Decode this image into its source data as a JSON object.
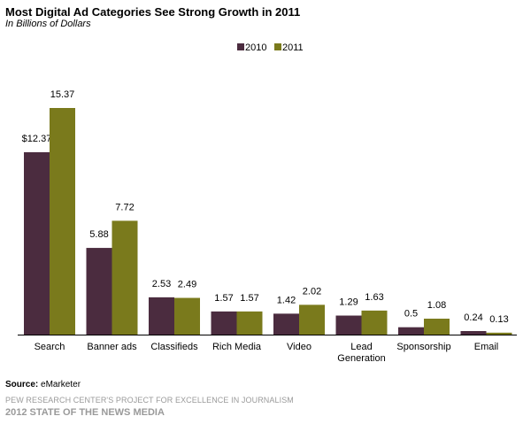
{
  "header": {
    "title": "Most Digital Ad Categories See Strong Growth in 2011",
    "subtitle": "In Billions of Dollars"
  },
  "footer": {
    "source_label": "Source:",
    "source_value": "eMarketer",
    "org_line": "PEW RESEARCH CENTER'S PROJECT FOR EXCELLENCE IN JOURNALISM",
    "report_line": "2012 STATE OF THE NEWS MEDIA"
  },
  "chart_data": {
    "type": "bar",
    "title": "Most Digital Ad Categories See Strong Growth in 2011",
    "subtitle": "In Billions of Dollars",
    "categories": [
      [
        "Search"
      ],
      [
        "Banner ads"
      ],
      [
        "Classifieds"
      ],
      [
        "Rich Media"
      ],
      [
        "Video"
      ],
      [
        "Lead",
        "Generation"
      ],
      [
        "Sponsorship"
      ],
      [
        "Email"
      ]
    ],
    "series": [
      {
        "name": "2010",
        "color": "#4b2c3f",
        "values": [
          12.37,
          5.88,
          2.53,
          1.57,
          1.42,
          1.29,
          0.5,
          0.24
        ],
        "labels": [
          "$12.37",
          "5.88",
          "2.53",
          "1.57",
          "1.42",
          "1.29",
          "0.5",
          "0.24"
        ]
      },
      {
        "name": "2011",
        "color": "#7a7a1c",
        "values": [
          15.37,
          7.72,
          2.49,
          1.57,
          2.02,
          1.63,
          1.08,
          0.13
        ],
        "labels": [
          "15.37",
          "7.72",
          "2.49",
          "1.57",
          "2.02",
          "1.63",
          "1.08",
          "0.13"
        ]
      }
    ],
    "legend_position": "top-center",
    "grid": false,
    "ylim": [
      0,
      15.37
    ]
  }
}
